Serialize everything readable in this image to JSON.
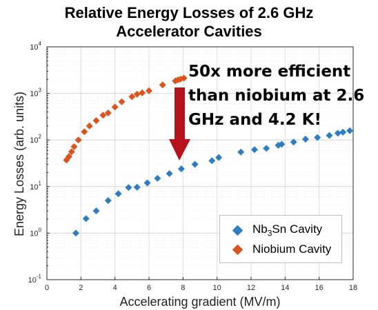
{
  "chart_data": {
    "type": "scatter",
    "title_lines": [
      "Relative Energy Losses of 2.6 GHz",
      "Accelerator Cavities"
    ],
    "xlabel": "Accelerating gradient (MV/m)",
    "ylabel": "Energy Losses (arb. units)",
    "xlim": [
      0,
      18
    ],
    "ylim": [
      0.1,
      10000
    ],
    "yscale": "log",
    "grid": true,
    "legend_position": "bottom-right",
    "x_ticks": [
      "0",
      "2",
      "4",
      "6",
      "8",
      "10",
      "12",
      "14",
      "16",
      "18"
    ],
    "y_ticks": [
      {
        "base": "10",
        "exp": "-1",
        "value": 0.1
      },
      {
        "base": "10",
        "exp": "0",
        "value": 1
      },
      {
        "base": "10",
        "exp": "1",
        "value": 10
      },
      {
        "base": "10",
        "exp": "2",
        "value": 100
      },
      {
        "base": "10",
        "exp": "3",
        "value": 1000
      },
      {
        "base": "10",
        "exp": "4",
        "value": 10000
      }
    ],
    "series": [
      {
        "name_parts": [
          "Nb",
          "3",
          "Sn Cavity"
        ],
        "color": "#2f7dc1",
        "points": [
          [
            1.7,
            1.0
          ],
          [
            2.3,
            2.05
          ],
          [
            2.9,
            3.0
          ],
          [
            3.6,
            5.0
          ],
          [
            4.2,
            7.0
          ],
          [
            4.8,
            9.5
          ],
          [
            5.3,
            9.7
          ],
          [
            5.9,
            12
          ],
          [
            6.5,
            15
          ],
          [
            7.2,
            19
          ],
          [
            7.9,
            24
          ],
          [
            8.7,
            30
          ],
          [
            9.7,
            36
          ],
          [
            10.1,
            42
          ],
          [
            11.4,
            55
          ],
          [
            12.2,
            62
          ],
          [
            12.9,
            66
          ],
          [
            13.6,
            77
          ],
          [
            13.8,
            81
          ],
          [
            14.5,
            90
          ],
          [
            15.2,
            104
          ],
          [
            15.9,
            113
          ],
          [
            16.6,
            125
          ],
          [
            17.1,
            140
          ],
          [
            17.4,
            147
          ],
          [
            17.8,
            158
          ]
        ]
      },
      {
        "name": "Niobium Cavity",
        "color": "#d9541e",
        "points": [
          [
            1.15,
            37
          ],
          [
            1.3,
            44
          ],
          [
            1.45,
            56
          ],
          [
            1.6,
            72
          ],
          [
            1.85,
            100
          ],
          [
            2.2,
            150
          ],
          [
            2.5,
            200
          ],
          [
            2.9,
            260
          ],
          [
            3.3,
            340
          ],
          [
            3.6,
            380
          ],
          [
            4.0,
            510
          ],
          [
            4.4,
            660
          ],
          [
            5.0,
            850
          ],
          [
            5.3,
            960
          ],
          [
            5.6,
            1030
          ],
          [
            6.0,
            1140
          ],
          [
            6.8,
            1520
          ],
          [
            7.55,
            1850
          ],
          [
            7.7,
            1950
          ],
          [
            7.85,
            2030
          ],
          [
            8.05,
            2130
          ]
        ]
      }
    ],
    "annotation_lines": [
      "50x more efficient",
      "than niobium at 2.6",
      "GHz and 4.2 K!"
    ],
    "arrow_color": "#b5121b"
  }
}
